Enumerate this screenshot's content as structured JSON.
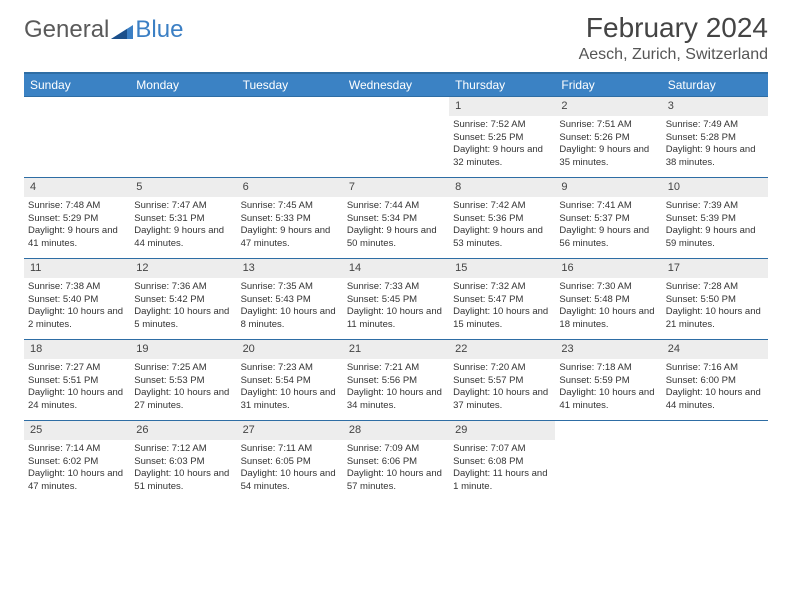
{
  "logo": {
    "general": "General",
    "blue": "Blue"
  },
  "title": "February 2024",
  "location": "Aesch, Zurich, Switzerland",
  "day_headers": [
    "Sunday",
    "Monday",
    "Tuesday",
    "Wednesday",
    "Thursday",
    "Friday",
    "Saturday"
  ],
  "colors": {
    "header_bg": "#3b82c4",
    "header_border": "#2e6da4",
    "daynum_bg": "#ededed",
    "text": "#333333",
    "logo_gray": "#5a5a5a",
    "logo_blue": "#3b7fc4"
  },
  "weeks": [
    [
      {
        "num": "",
        "sunrise": "",
        "sunset": "",
        "daylight": ""
      },
      {
        "num": "",
        "sunrise": "",
        "sunset": "",
        "daylight": ""
      },
      {
        "num": "",
        "sunrise": "",
        "sunset": "",
        "daylight": ""
      },
      {
        "num": "",
        "sunrise": "",
        "sunset": "",
        "daylight": ""
      },
      {
        "num": "1",
        "sunrise": "Sunrise: 7:52 AM",
        "sunset": "Sunset: 5:25 PM",
        "daylight": "Daylight: 9 hours and 32 minutes."
      },
      {
        "num": "2",
        "sunrise": "Sunrise: 7:51 AM",
        "sunset": "Sunset: 5:26 PM",
        "daylight": "Daylight: 9 hours and 35 minutes."
      },
      {
        "num": "3",
        "sunrise": "Sunrise: 7:49 AM",
        "sunset": "Sunset: 5:28 PM",
        "daylight": "Daylight: 9 hours and 38 minutes."
      }
    ],
    [
      {
        "num": "4",
        "sunrise": "Sunrise: 7:48 AM",
        "sunset": "Sunset: 5:29 PM",
        "daylight": "Daylight: 9 hours and 41 minutes."
      },
      {
        "num": "5",
        "sunrise": "Sunrise: 7:47 AM",
        "sunset": "Sunset: 5:31 PM",
        "daylight": "Daylight: 9 hours and 44 minutes."
      },
      {
        "num": "6",
        "sunrise": "Sunrise: 7:45 AM",
        "sunset": "Sunset: 5:33 PM",
        "daylight": "Daylight: 9 hours and 47 minutes."
      },
      {
        "num": "7",
        "sunrise": "Sunrise: 7:44 AM",
        "sunset": "Sunset: 5:34 PM",
        "daylight": "Daylight: 9 hours and 50 minutes."
      },
      {
        "num": "8",
        "sunrise": "Sunrise: 7:42 AM",
        "sunset": "Sunset: 5:36 PM",
        "daylight": "Daylight: 9 hours and 53 minutes."
      },
      {
        "num": "9",
        "sunrise": "Sunrise: 7:41 AM",
        "sunset": "Sunset: 5:37 PM",
        "daylight": "Daylight: 9 hours and 56 minutes."
      },
      {
        "num": "10",
        "sunrise": "Sunrise: 7:39 AM",
        "sunset": "Sunset: 5:39 PM",
        "daylight": "Daylight: 9 hours and 59 minutes."
      }
    ],
    [
      {
        "num": "11",
        "sunrise": "Sunrise: 7:38 AM",
        "sunset": "Sunset: 5:40 PM",
        "daylight": "Daylight: 10 hours and 2 minutes."
      },
      {
        "num": "12",
        "sunrise": "Sunrise: 7:36 AM",
        "sunset": "Sunset: 5:42 PM",
        "daylight": "Daylight: 10 hours and 5 minutes."
      },
      {
        "num": "13",
        "sunrise": "Sunrise: 7:35 AM",
        "sunset": "Sunset: 5:43 PM",
        "daylight": "Daylight: 10 hours and 8 minutes."
      },
      {
        "num": "14",
        "sunrise": "Sunrise: 7:33 AM",
        "sunset": "Sunset: 5:45 PM",
        "daylight": "Daylight: 10 hours and 11 minutes."
      },
      {
        "num": "15",
        "sunrise": "Sunrise: 7:32 AM",
        "sunset": "Sunset: 5:47 PM",
        "daylight": "Daylight: 10 hours and 15 minutes."
      },
      {
        "num": "16",
        "sunrise": "Sunrise: 7:30 AM",
        "sunset": "Sunset: 5:48 PM",
        "daylight": "Daylight: 10 hours and 18 minutes."
      },
      {
        "num": "17",
        "sunrise": "Sunrise: 7:28 AM",
        "sunset": "Sunset: 5:50 PM",
        "daylight": "Daylight: 10 hours and 21 minutes."
      }
    ],
    [
      {
        "num": "18",
        "sunrise": "Sunrise: 7:27 AM",
        "sunset": "Sunset: 5:51 PM",
        "daylight": "Daylight: 10 hours and 24 minutes."
      },
      {
        "num": "19",
        "sunrise": "Sunrise: 7:25 AM",
        "sunset": "Sunset: 5:53 PM",
        "daylight": "Daylight: 10 hours and 27 minutes."
      },
      {
        "num": "20",
        "sunrise": "Sunrise: 7:23 AM",
        "sunset": "Sunset: 5:54 PM",
        "daylight": "Daylight: 10 hours and 31 minutes."
      },
      {
        "num": "21",
        "sunrise": "Sunrise: 7:21 AM",
        "sunset": "Sunset: 5:56 PM",
        "daylight": "Daylight: 10 hours and 34 minutes."
      },
      {
        "num": "22",
        "sunrise": "Sunrise: 7:20 AM",
        "sunset": "Sunset: 5:57 PM",
        "daylight": "Daylight: 10 hours and 37 minutes."
      },
      {
        "num": "23",
        "sunrise": "Sunrise: 7:18 AM",
        "sunset": "Sunset: 5:59 PM",
        "daylight": "Daylight: 10 hours and 41 minutes."
      },
      {
        "num": "24",
        "sunrise": "Sunrise: 7:16 AM",
        "sunset": "Sunset: 6:00 PM",
        "daylight": "Daylight: 10 hours and 44 minutes."
      }
    ],
    [
      {
        "num": "25",
        "sunrise": "Sunrise: 7:14 AM",
        "sunset": "Sunset: 6:02 PM",
        "daylight": "Daylight: 10 hours and 47 minutes."
      },
      {
        "num": "26",
        "sunrise": "Sunrise: 7:12 AM",
        "sunset": "Sunset: 6:03 PM",
        "daylight": "Daylight: 10 hours and 51 minutes."
      },
      {
        "num": "27",
        "sunrise": "Sunrise: 7:11 AM",
        "sunset": "Sunset: 6:05 PM",
        "daylight": "Daylight: 10 hours and 54 minutes."
      },
      {
        "num": "28",
        "sunrise": "Sunrise: 7:09 AM",
        "sunset": "Sunset: 6:06 PM",
        "daylight": "Daylight: 10 hours and 57 minutes."
      },
      {
        "num": "29",
        "sunrise": "Sunrise: 7:07 AM",
        "sunset": "Sunset: 6:08 PM",
        "daylight": "Daylight: 11 hours and 1 minute."
      },
      {
        "num": "",
        "sunrise": "",
        "sunset": "",
        "daylight": ""
      },
      {
        "num": "",
        "sunrise": "",
        "sunset": "",
        "daylight": ""
      }
    ]
  ]
}
